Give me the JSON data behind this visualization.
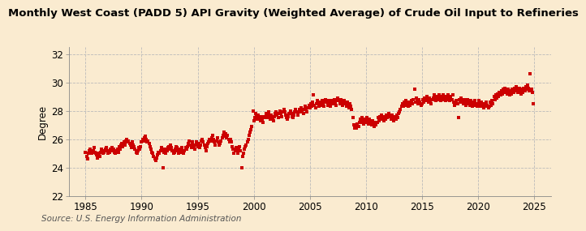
{
  "title": "Monthly West Coast (PADD 5) API Gravity (Weighted Average) of Crude Oil Input to Refineries",
  "ylabel": "Degree",
  "source": "Source: U.S. Energy Information Administration",
  "background_color": "#faebd0",
  "dot_color": "#cc0000",
  "dot_size": 5,
  "xlim": [
    1983.5,
    2026.5
  ],
  "ylim": [
    22,
    32.5
  ],
  "yticks": [
    22,
    24,
    26,
    28,
    30,
    32
  ],
  "xticks": [
    1985,
    1990,
    1995,
    2000,
    2005,
    2010,
    2015,
    2020,
    2025
  ],
  "grid_color": "#bbbbbb",
  "title_fontsize": 9.5,
  "axis_fontsize": 8.5,
  "ylabel_fontsize": 8.5,
  "source_fontsize": 7.5,
  "data_points": [
    [
      1985.0,
      25.1
    ],
    [
      1985.08,
      24.8
    ],
    [
      1985.17,
      24.6
    ],
    [
      1985.25,
      25.0
    ],
    [
      1985.33,
      25.2
    ],
    [
      1985.42,
      25.3
    ],
    [
      1985.5,
      25.1
    ],
    [
      1985.58,
      25.0
    ],
    [
      1985.67,
      25.2
    ],
    [
      1985.75,
      25.4
    ],
    [
      1985.83,
      25.1
    ],
    [
      1985.92,
      25.0
    ],
    [
      1986.0,
      24.9
    ],
    [
      1986.08,
      24.7
    ],
    [
      1986.17,
      25.0
    ],
    [
      1986.25,
      24.8
    ],
    [
      1986.33,
      25.1
    ],
    [
      1986.42,
      25.3
    ],
    [
      1986.5,
      25.2
    ],
    [
      1986.58,
      25.0
    ],
    [
      1986.67,
      25.1
    ],
    [
      1986.75,
      25.3
    ],
    [
      1986.83,
      25.4
    ],
    [
      1986.92,
      25.2
    ],
    [
      1987.0,
      25.0
    ],
    [
      1987.08,
      25.2
    ],
    [
      1987.17,
      25.1
    ],
    [
      1987.25,
      25.3
    ],
    [
      1987.33,
      25.4
    ],
    [
      1987.42,
      25.2
    ],
    [
      1987.5,
      25.3
    ],
    [
      1987.58,
      25.1
    ],
    [
      1987.67,
      25.0
    ],
    [
      1987.75,
      25.2
    ],
    [
      1987.83,
      25.3
    ],
    [
      1987.92,
      25.1
    ],
    [
      1988.0,
      25.5
    ],
    [
      1988.08,
      25.3
    ],
    [
      1988.17,
      25.6
    ],
    [
      1988.25,
      25.7
    ],
    [
      1988.33,
      25.5
    ],
    [
      1988.42,
      25.8
    ],
    [
      1988.5,
      25.6
    ],
    [
      1988.58,
      25.9
    ],
    [
      1988.67,
      26.0
    ],
    [
      1988.75,
      25.8
    ],
    [
      1988.83,
      25.9
    ],
    [
      1988.92,
      25.7
    ],
    [
      1989.0,
      25.6
    ],
    [
      1989.08,
      25.4
    ],
    [
      1989.17,
      25.8
    ],
    [
      1989.25,
      25.6
    ],
    [
      1989.33,
      25.5
    ],
    [
      1989.42,
      25.3
    ],
    [
      1989.5,
      25.1
    ],
    [
      1989.58,
      25.0
    ],
    [
      1989.67,
      25.2
    ],
    [
      1989.75,
      25.4
    ],
    [
      1989.83,
      25.3
    ],
    [
      1989.92,
      25.5
    ],
    [
      1990.0,
      25.8
    ],
    [
      1990.08,
      26.0
    ],
    [
      1990.17,
      25.9
    ],
    [
      1990.25,
      26.1
    ],
    [
      1990.33,
      26.2
    ],
    [
      1990.42,
      26.0
    ],
    [
      1990.5,
      25.8
    ],
    [
      1990.58,
      25.9
    ],
    [
      1990.67,
      25.7
    ],
    [
      1990.75,
      25.5
    ],
    [
      1990.83,
      25.3
    ],
    [
      1990.92,
      25.1
    ],
    [
      1991.0,
      25.0
    ],
    [
      1991.08,
      24.8
    ],
    [
      1991.17,
      24.6
    ],
    [
      1991.25,
      24.5
    ],
    [
      1991.33,
      24.7
    ],
    [
      1991.42,
      24.9
    ],
    [
      1991.5,
      25.1
    ],
    [
      1991.58,
      25.0
    ],
    [
      1991.67,
      25.2
    ],
    [
      1991.75,
      25.4
    ],
    [
      1991.83,
      25.2
    ],
    [
      1991.92,
      24.0
    ],
    [
      1992.0,
      25.1
    ],
    [
      1992.08,
      25.3
    ],
    [
      1992.17,
      25.0
    ],
    [
      1992.25,
      25.2
    ],
    [
      1992.33,
      25.4
    ],
    [
      1992.42,
      25.5
    ],
    [
      1992.5,
      25.3
    ],
    [
      1992.58,
      25.6
    ],
    [
      1992.67,
      25.4
    ],
    [
      1992.75,
      25.2
    ],
    [
      1992.83,
      25.0
    ],
    [
      1992.92,
      25.1
    ],
    [
      1993.0,
      25.3
    ],
    [
      1993.08,
      25.5
    ],
    [
      1993.17,
      25.4
    ],
    [
      1993.25,
      25.2
    ],
    [
      1993.33,
      25.0
    ],
    [
      1993.42,
      25.3
    ],
    [
      1993.5,
      25.1
    ],
    [
      1993.58,
      25.4
    ],
    [
      1993.67,
      25.2
    ],
    [
      1993.75,
      25.0
    ],
    [
      1993.83,
      25.2
    ],
    [
      1993.92,
      25.4
    ],
    [
      1994.0,
      25.3
    ],
    [
      1994.08,
      25.5
    ],
    [
      1994.17,
      25.7
    ],
    [
      1994.25,
      25.9
    ],
    [
      1994.33,
      25.6
    ],
    [
      1994.42,
      25.4
    ],
    [
      1994.5,
      25.8
    ],
    [
      1994.58,
      25.6
    ],
    [
      1994.67,
      25.5
    ],
    [
      1994.75,
      25.3
    ],
    [
      1994.83,
      25.6
    ],
    [
      1994.92,
      25.8
    ],
    [
      1995.0,
      25.5
    ],
    [
      1995.08,
      25.7
    ],
    [
      1995.17,
      25.4
    ],
    [
      1995.25,
      25.6
    ],
    [
      1995.33,
      25.9
    ],
    [
      1995.42,
      26.0
    ],
    [
      1995.5,
      25.8
    ],
    [
      1995.58,
      25.6
    ],
    [
      1995.67,
      25.4
    ],
    [
      1995.75,
      25.2
    ],
    [
      1995.83,
      25.5
    ],
    [
      1995.92,
      25.7
    ],
    [
      1996.0,
      25.8
    ],
    [
      1996.08,
      26.0
    ],
    [
      1996.17,
      25.9
    ],
    [
      1996.25,
      26.1
    ],
    [
      1996.33,
      26.3
    ],
    [
      1996.42,
      26.0
    ],
    [
      1996.5,
      25.8
    ],
    [
      1996.58,
      25.6
    ],
    [
      1996.67,
      25.9
    ],
    [
      1996.75,
      26.1
    ],
    [
      1996.83,
      25.8
    ],
    [
      1996.92,
      25.6
    ],
    [
      1997.0,
      25.7
    ],
    [
      1997.08,
      25.9
    ],
    [
      1997.17,
      26.1
    ],
    [
      1997.25,
      26.3
    ],
    [
      1997.33,
      26.5
    ],
    [
      1997.42,
      26.2
    ],
    [
      1997.5,
      26.4
    ],
    [
      1997.58,
      26.1
    ],
    [
      1997.67,
      26.3
    ],
    [
      1997.75,
      26.0
    ],
    [
      1997.83,
      25.8
    ],
    [
      1997.92,
      26.0
    ],
    [
      1998.0,
      25.8
    ],
    [
      1998.08,
      25.5
    ],
    [
      1998.17,
      25.3
    ],
    [
      1998.25,
      25.0
    ],
    [
      1998.33,
      25.2
    ],
    [
      1998.42,
      25.4
    ],
    [
      1998.5,
      25.2
    ],
    [
      1998.58,
      25.0
    ],
    [
      1998.67,
      25.3
    ],
    [
      1998.75,
      25.5
    ],
    [
      1998.83,
      25.2
    ],
    [
      1998.92,
      24.0
    ],
    [
      1999.0,
      24.8
    ],
    [
      1999.08,
      25.0
    ],
    [
      1999.17,
      25.3
    ],
    [
      1999.25,
      25.5
    ],
    [
      1999.33,
      25.6
    ],
    [
      1999.42,
      25.8
    ],
    [
      1999.5,
      26.0
    ],
    [
      1999.58,
      26.3
    ],
    [
      1999.67,
      26.5
    ],
    [
      1999.75,
      26.7
    ],
    [
      1999.83,
      26.9
    ],
    [
      1999.92,
      28.0
    ],
    [
      2000.0,
      27.3
    ],
    [
      2000.08,
      27.5
    ],
    [
      2000.17,
      27.8
    ],
    [
      2000.25,
      27.6
    ],
    [
      2000.33,
      27.4
    ],
    [
      2000.42,
      27.7
    ],
    [
      2000.5,
      27.5
    ],
    [
      2000.58,
      27.3
    ],
    [
      2000.67,
      27.6
    ],
    [
      2000.75,
      27.4
    ],
    [
      2000.83,
      27.2
    ],
    [
      2000.92,
      27.5
    ],
    [
      2001.0,
      27.6
    ],
    [
      2001.08,
      27.8
    ],
    [
      2001.17,
      27.5
    ],
    [
      2001.25,
      27.7
    ],
    [
      2001.33,
      27.9
    ],
    [
      2001.42,
      27.6
    ],
    [
      2001.5,
      27.4
    ],
    [
      2001.58,
      27.7
    ],
    [
      2001.67,
      27.5
    ],
    [
      2001.75,
      27.3
    ],
    [
      2001.83,
      27.6
    ],
    [
      2001.92,
      27.8
    ],
    [
      2002.0,
      27.9
    ],
    [
      2002.08,
      27.7
    ],
    [
      2002.17,
      27.5
    ],
    [
      2002.25,
      27.8
    ],
    [
      2002.33,
      28.0
    ],
    [
      2002.42,
      27.8
    ],
    [
      2002.5,
      27.6
    ],
    [
      2002.58,
      27.9
    ],
    [
      2002.67,
      28.1
    ],
    [
      2002.75,
      27.9
    ],
    [
      2002.83,
      27.7
    ],
    [
      2002.92,
      27.5
    ],
    [
      2003.0,
      27.4
    ],
    [
      2003.08,
      27.6
    ],
    [
      2003.17,
      27.8
    ],
    [
      2003.25,
      28.0
    ],
    [
      2003.33,
      27.8
    ],
    [
      2003.42,
      27.6
    ],
    [
      2003.5,
      27.5
    ],
    [
      2003.58,
      27.7
    ],
    [
      2003.67,
      27.9
    ],
    [
      2003.75,
      28.1
    ],
    [
      2003.83,
      27.9
    ],
    [
      2003.92,
      27.7
    ],
    [
      2004.0,
      27.9
    ],
    [
      2004.08,
      28.1
    ],
    [
      2004.17,
      27.9
    ],
    [
      2004.25,
      28.2
    ],
    [
      2004.33,
      28.0
    ],
    [
      2004.42,
      27.8
    ],
    [
      2004.5,
      28.1
    ],
    [
      2004.58,
      28.3
    ],
    [
      2004.67,
      28.1
    ],
    [
      2004.75,
      27.9
    ],
    [
      2004.83,
      28.2
    ],
    [
      2004.92,
      28.4
    ],
    [
      2005.0,
      28.2
    ],
    [
      2005.08,
      28.5
    ],
    [
      2005.17,
      28.3
    ],
    [
      2005.25,
      28.6
    ],
    [
      2005.33,
      29.1
    ],
    [
      2005.42,
      28.4
    ],
    [
      2005.5,
      28.2
    ],
    [
      2005.58,
      28.5
    ],
    [
      2005.67,
      28.7
    ],
    [
      2005.75,
      28.5
    ],
    [
      2005.83,
      28.3
    ],
    [
      2005.92,
      28.6
    ],
    [
      2006.0,
      28.4
    ],
    [
      2006.08,
      28.7
    ],
    [
      2006.17,
      28.5
    ],
    [
      2006.25,
      28.3
    ],
    [
      2006.33,
      28.6
    ],
    [
      2006.42,
      28.8
    ],
    [
      2006.5,
      28.6
    ],
    [
      2006.58,
      28.4
    ],
    [
      2006.67,
      28.7
    ],
    [
      2006.75,
      28.5
    ],
    [
      2006.83,
      28.3
    ],
    [
      2006.92,
      28.6
    ],
    [
      2007.0,
      28.7
    ],
    [
      2007.08,
      28.5
    ],
    [
      2007.17,
      28.8
    ],
    [
      2007.25,
      28.6
    ],
    [
      2007.33,
      28.4
    ],
    [
      2007.42,
      28.7
    ],
    [
      2007.5,
      28.9
    ],
    [
      2007.58,
      28.7
    ],
    [
      2007.67,
      28.5
    ],
    [
      2007.75,
      28.8
    ],
    [
      2007.83,
      28.6
    ],
    [
      2007.92,
      28.4
    ],
    [
      2008.0,
      28.5
    ],
    [
      2008.08,
      28.7
    ],
    [
      2008.17,
      28.5
    ],
    [
      2008.25,
      28.3
    ],
    [
      2008.33,
      28.6
    ],
    [
      2008.42,
      28.4
    ],
    [
      2008.5,
      28.2
    ],
    [
      2008.58,
      28.5
    ],
    [
      2008.67,
      28.3
    ],
    [
      2008.75,
      28.1
    ],
    [
      2008.83,
      27.5
    ],
    [
      2008.92,
      27.0
    ],
    [
      2009.0,
      26.8
    ],
    [
      2009.08,
      27.0
    ],
    [
      2009.17,
      26.8
    ],
    [
      2009.25,
      27.1
    ],
    [
      2009.33,
      26.9
    ],
    [
      2009.42,
      27.2
    ],
    [
      2009.5,
      27.4
    ],
    [
      2009.58,
      27.2
    ],
    [
      2009.67,
      27.5
    ],
    [
      2009.75,
      27.3
    ],
    [
      2009.83,
      27.1
    ],
    [
      2009.92,
      27.4
    ],
    [
      2010.0,
      27.2
    ],
    [
      2010.08,
      27.5
    ],
    [
      2010.17,
      27.3
    ],
    [
      2010.25,
      27.1
    ],
    [
      2010.33,
      27.4
    ],
    [
      2010.42,
      27.2
    ],
    [
      2010.5,
      27.0
    ],
    [
      2010.58,
      27.3
    ],
    [
      2010.67,
      27.1
    ],
    [
      2010.75,
      26.9
    ],
    [
      2010.83,
      27.2
    ],
    [
      2010.92,
      27.0
    ],
    [
      2011.0,
      27.2
    ],
    [
      2011.08,
      27.5
    ],
    [
      2011.17,
      27.3
    ],
    [
      2011.25,
      27.6
    ],
    [
      2011.33,
      27.4
    ],
    [
      2011.42,
      27.7
    ],
    [
      2011.5,
      27.5
    ],
    [
      2011.58,
      27.3
    ],
    [
      2011.67,
      27.6
    ],
    [
      2011.75,
      27.4
    ],
    [
      2011.83,
      27.7
    ],
    [
      2011.92,
      27.5
    ],
    [
      2012.0,
      27.6
    ],
    [
      2012.08,
      27.8
    ],
    [
      2012.17,
      27.6
    ],
    [
      2012.25,
      27.4
    ],
    [
      2012.33,
      27.7
    ],
    [
      2012.42,
      27.5
    ],
    [
      2012.5,
      27.3
    ],
    [
      2012.58,
      27.6
    ],
    [
      2012.67,
      27.4
    ],
    [
      2012.75,
      27.7
    ],
    [
      2012.83,
      27.5
    ],
    [
      2012.92,
      27.8
    ],
    [
      2013.0,
      27.9
    ],
    [
      2013.08,
      28.1
    ],
    [
      2013.17,
      28.3
    ],
    [
      2013.25,
      28.5
    ],
    [
      2013.33,
      28.3
    ],
    [
      2013.42,
      28.6
    ],
    [
      2013.5,
      28.4
    ],
    [
      2013.58,
      28.7
    ],
    [
      2013.67,
      28.5
    ],
    [
      2013.75,
      28.3
    ],
    [
      2013.83,
      28.6
    ],
    [
      2013.92,
      28.4
    ],
    [
      2014.0,
      28.5
    ],
    [
      2014.08,
      28.7
    ],
    [
      2014.17,
      28.5
    ],
    [
      2014.25,
      28.8
    ],
    [
      2014.33,
      29.5
    ],
    [
      2014.42,
      28.6
    ],
    [
      2014.5,
      28.9
    ],
    [
      2014.58,
      28.7
    ],
    [
      2014.67,
      28.5
    ],
    [
      2014.75,
      28.8
    ],
    [
      2014.83,
      28.6
    ],
    [
      2014.92,
      28.4
    ],
    [
      2015.0,
      28.5
    ],
    [
      2015.08,
      28.8
    ],
    [
      2015.17,
      28.6
    ],
    [
      2015.25,
      28.9
    ],
    [
      2015.33,
      28.7
    ],
    [
      2015.42,
      29.0
    ],
    [
      2015.5,
      28.8
    ],
    [
      2015.58,
      28.6
    ],
    [
      2015.67,
      28.9
    ],
    [
      2015.75,
      28.7
    ],
    [
      2015.83,
      28.5
    ],
    [
      2015.92,
      28.8
    ],
    [
      2016.0,
      28.9
    ],
    [
      2016.08,
      29.1
    ],
    [
      2016.17,
      28.9
    ],
    [
      2016.25,
      28.7
    ],
    [
      2016.33,
      29.0
    ],
    [
      2016.42,
      28.8
    ],
    [
      2016.5,
      29.1
    ],
    [
      2016.58,
      28.9
    ],
    [
      2016.67,
      28.7
    ],
    [
      2016.75,
      29.0
    ],
    [
      2016.83,
      28.8
    ],
    [
      2016.92,
      29.1
    ],
    [
      2017.0,
      28.9
    ],
    [
      2017.08,
      28.7
    ],
    [
      2017.17,
      29.0
    ],
    [
      2017.25,
      28.8
    ],
    [
      2017.33,
      29.1
    ],
    [
      2017.42,
      28.9
    ],
    [
      2017.5,
      28.7
    ],
    [
      2017.58,
      29.0
    ],
    [
      2017.67,
      28.8
    ],
    [
      2017.75,
      29.1
    ],
    [
      2017.83,
      28.6
    ],
    [
      2017.92,
      28.4
    ],
    [
      2018.0,
      28.5
    ],
    [
      2018.08,
      28.7
    ],
    [
      2018.17,
      28.5
    ],
    [
      2018.25,
      27.5
    ],
    [
      2018.33,
      28.8
    ],
    [
      2018.42,
      28.6
    ],
    [
      2018.5,
      28.9
    ],
    [
      2018.58,
      28.7
    ],
    [
      2018.67,
      28.5
    ],
    [
      2018.75,
      28.8
    ],
    [
      2018.83,
      28.6
    ],
    [
      2018.92,
      28.4
    ],
    [
      2019.0,
      28.5
    ],
    [
      2019.08,
      28.8
    ],
    [
      2019.17,
      28.6
    ],
    [
      2019.25,
      28.4
    ],
    [
      2019.33,
      28.7
    ],
    [
      2019.42,
      28.5
    ],
    [
      2019.5,
      28.3
    ],
    [
      2019.58,
      28.6
    ],
    [
      2019.67,
      28.4
    ],
    [
      2019.75,
      28.7
    ],
    [
      2019.83,
      28.5
    ],
    [
      2019.92,
      28.3
    ],
    [
      2020.0,
      28.4
    ],
    [
      2020.08,
      28.7
    ],
    [
      2020.17,
      28.5
    ],
    [
      2020.25,
      28.3
    ],
    [
      2020.33,
      28.6
    ],
    [
      2020.42,
      28.4
    ],
    [
      2020.5,
      28.2
    ],
    [
      2020.58,
      28.5
    ],
    [
      2020.67,
      28.3
    ],
    [
      2020.75,
      28.6
    ],
    [
      2020.83,
      28.4
    ],
    [
      2020.92,
      28.2
    ],
    [
      2021.0,
      28.3
    ],
    [
      2021.08,
      28.6
    ],
    [
      2021.17,
      28.4
    ],
    [
      2021.25,
      28.7
    ],
    [
      2021.33,
      28.5
    ],
    [
      2021.42,
      29.0
    ],
    [
      2021.5,
      28.8
    ],
    [
      2021.58,
      29.1
    ],
    [
      2021.67,
      28.9
    ],
    [
      2021.75,
      29.2
    ],
    [
      2021.83,
      29.0
    ],
    [
      2021.92,
      29.3
    ],
    [
      2022.0,
      29.1
    ],
    [
      2022.08,
      29.4
    ],
    [
      2022.17,
      29.2
    ],
    [
      2022.25,
      29.5
    ],
    [
      2022.33,
      29.3
    ],
    [
      2022.42,
      29.6
    ],
    [
      2022.5,
      29.4
    ],
    [
      2022.58,
      29.2
    ],
    [
      2022.67,
      29.5
    ],
    [
      2022.75,
      29.3
    ],
    [
      2022.83,
      29.1
    ],
    [
      2022.92,
      29.4
    ],
    [
      2023.0,
      29.2
    ],
    [
      2023.08,
      29.5
    ],
    [
      2023.17,
      29.3
    ],
    [
      2023.25,
      29.6
    ],
    [
      2023.33,
      29.4
    ],
    [
      2023.42,
      29.7
    ],
    [
      2023.5,
      29.5
    ],
    [
      2023.58,
      29.3
    ],
    [
      2023.67,
      29.6
    ],
    [
      2023.75,
      29.4
    ],
    [
      2023.83,
      29.2
    ],
    [
      2023.92,
      29.5
    ],
    [
      2024.0,
      29.3
    ],
    [
      2024.08,
      29.6
    ],
    [
      2024.17,
      29.4
    ],
    [
      2024.25,
      29.7
    ],
    [
      2024.33,
      29.5
    ],
    [
      2024.42,
      29.8
    ],
    [
      2024.5,
      29.6
    ],
    [
      2024.58,
      29.4
    ],
    [
      2024.67,
      30.6
    ],
    [
      2024.75,
      29.5
    ],
    [
      2024.83,
      29.3
    ],
    [
      2024.92,
      28.5
    ]
  ]
}
